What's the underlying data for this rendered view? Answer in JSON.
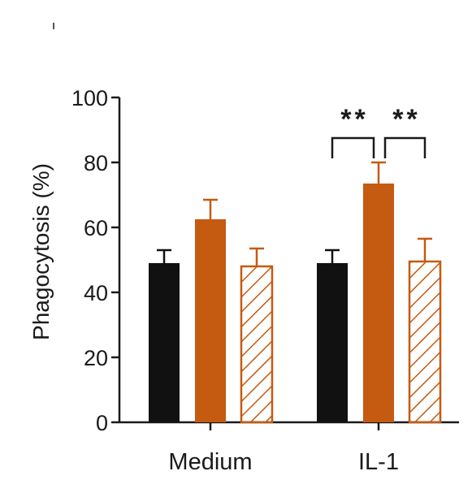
{
  "colors": {
    "black": "#111111",
    "orange": "#c55a11",
    "axis": "#1a1a1a"
  },
  "chart_data": {
    "type": "bar",
    "title": "",
    "xlabel": "",
    "ylabel": "Phagocytosis (%)",
    "ylim": [
      0,
      100
    ],
    "yticks": [
      "0",
      "20",
      "40",
      "60",
      "80",
      "100"
    ],
    "categories": [
      "Medium",
      "IL-1"
    ],
    "series": [
      {
        "style": "solid-black",
        "values": [
          49,
          49
        ],
        "errors": [
          4,
          4
        ]
      },
      {
        "style": "solid-orange",
        "values": [
          62.5,
          73.5
        ],
        "errors": [
          6,
          6.5
        ]
      },
      {
        "style": "hatched-orange",
        "values": [
          48,
          49.5
        ],
        "errors": [
          5.5,
          7
        ]
      }
    ],
    "significance": [
      {
        "category": "IL-1",
        "from_series": 0,
        "to_series": 1,
        "label": "**"
      },
      {
        "category": "IL-1",
        "from_series": 1,
        "to_series": 2,
        "label": "**"
      }
    ]
  }
}
